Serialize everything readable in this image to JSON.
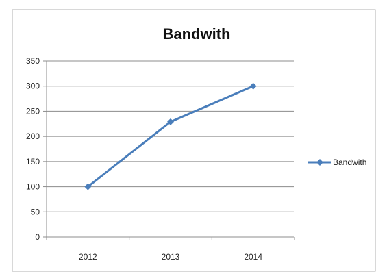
{
  "chart_data": {
    "type": "line",
    "title": "Bandwith",
    "xlabel": "",
    "ylabel": "",
    "categories": [
      "2012",
      "2013",
      "2014"
    ],
    "series": [
      {
        "name": "Bandwith",
        "values": [
          100,
          229,
          300
        ],
        "color": "#4a7ebb",
        "marker": "diamond"
      }
    ],
    "ylim": [
      0,
      350
    ],
    "yticks": [
      0,
      50,
      100,
      150,
      200,
      250,
      300,
      350
    ],
    "grid": true,
    "legend": "right"
  },
  "colors": {
    "frame_border": "#b0b0b0",
    "gridline": "#8c8c8c",
    "axis": "#8c8c8c"
  }
}
